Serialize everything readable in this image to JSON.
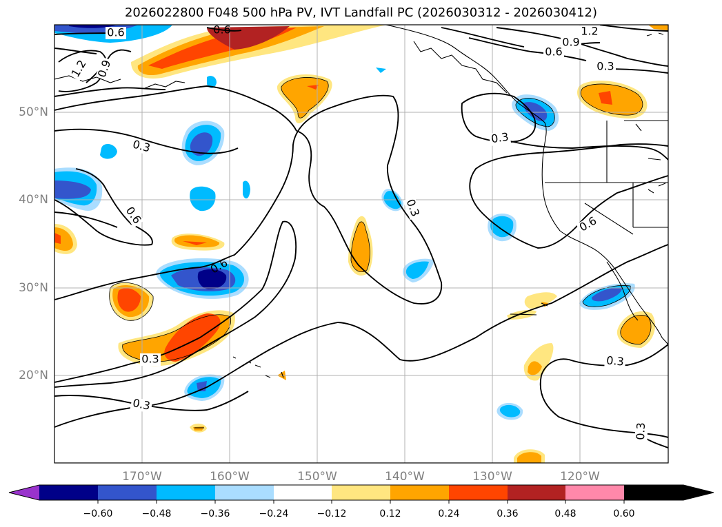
{
  "title": "2026022800 F048 500 hPa PV, IVT Landfall PC (2026030312 - 2026030412)",
  "lat_labels": [
    "50°N",
    "40°N",
    "30°N",
    "20°N"
  ],
  "lon_labels": [
    "170°W",
    "160°W",
    "150°W",
    "140°W",
    "130°W",
    "120°W"
  ],
  "contour_labels": [
    "0.6",
    "0.6",
    "1.2",
    "0.9",
    "0.6",
    "0.3",
    "1.2",
    "0.9",
    "0.3",
    "0.3",
    "0.6",
    "0.6",
    "0.3",
    "0.6",
    "0.3",
    "0.3",
    "0.3",
    "0.3"
  ],
  "colorbar": {
    "ticks": [
      "−0.60",
      "−0.48",
      "−0.36",
      "−0.24",
      "−0.12",
      "0.12",
      "0.24",
      "0.36",
      "0.48",
      "0.60"
    ],
    "colors": [
      "#9933cc",
      "#000088",
      "#3355cc",
      "#00bbff",
      "#aaddff",
      "#ffffff",
      "#ffe680",
      "#ffa500",
      "#ff4500",
      "#b22222",
      "#ff88aa"
    ]
  },
  "colors": {
    "axis_label": "#808080",
    "grid": "#b0b0b0",
    "contour": "#000000"
  }
}
